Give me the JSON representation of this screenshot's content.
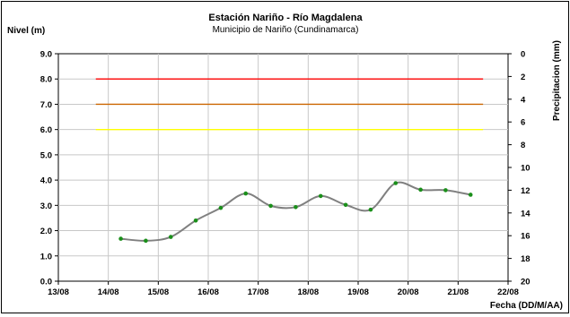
{
  "chart_data": {
    "type": "line",
    "title": "Estación Nariño  - Río Magdalena",
    "subtitle": "Municipio de Nariño (Cundinamarca)",
    "ylabel_left": "Nivel (m)",
    "ylabel_right": "Precipitacion (mm)",
    "xlabel": "Fecha (DD/M/AA)",
    "x_ticks": [
      "13/08",
      "14/08",
      "15/08",
      "16/08",
      "17/08",
      "18/08",
      "19/08",
      "20/08",
      "21/08",
      "22/08"
    ],
    "y_left_ticks": [
      "0.0",
      "1.0",
      "2.0",
      "3.0",
      "4.0",
      "5.0",
      "6.0",
      "7.0",
      "8.0",
      "9.0"
    ],
    "y_right_ticks": [
      "0",
      "2",
      "4",
      "6",
      "8",
      "10",
      "12",
      "14",
      "16",
      "18",
      "20"
    ],
    "ylim_left": [
      0,
      9
    ],
    "ylim_right": [
      20,
      0
    ],
    "grid": true,
    "series": [
      {
        "name": "",
        "color": "#808080",
        "marker_color": "#1a8f1a",
        "points": [
          {
            "x": "14/08 06:00",
            "y": 1.68
          },
          {
            "x": "14/08 18:00",
            "y": 1.6
          },
          {
            "x": "15/08 06:00",
            "y": 1.75
          },
          {
            "x": "15/08 18:00",
            "y": 2.4
          },
          {
            "x": "16/08 06:00",
            "y": 2.9
          },
          {
            "x": "16/08 18:00",
            "y": 3.47
          },
          {
            "x": "17/08 06:00",
            "y": 2.98
          },
          {
            "x": "17/08 18:00",
            "y": 2.93
          },
          {
            "x": "18/08 06:00",
            "y": 3.37
          },
          {
            "x": "18/08 18:00",
            "y": 3.02
          },
          {
            "x": "19/08 06:00",
            "y": 2.83
          },
          {
            "x": "19/08 18:00",
            "y": 3.88
          },
          {
            "x": "20/08 06:00",
            "y": 3.62
          },
          {
            "x": "20/08 18:00",
            "y": 3.6
          },
          {
            "x": "21/08 06:00",
            "y": 3.42
          }
        ]
      }
    ],
    "threshold_lines": [
      {
        "y": 8.0,
        "color": "#ff0000",
        "x_from": "13/08 18:00",
        "x_to": "21/08 12:00"
      },
      {
        "y": 7.0,
        "color": "#cc6600",
        "x_from": "13/08 18:00",
        "x_to": "21/08 12:00"
      },
      {
        "y": 6.0,
        "color": "#ffff00",
        "x_from": "13/08 18:00",
        "x_to": "21/08 12:00"
      }
    ]
  }
}
